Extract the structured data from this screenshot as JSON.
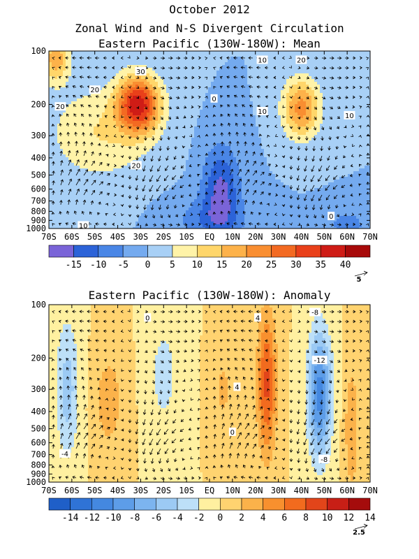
{
  "figure": {
    "title": "October 2012",
    "subtitle": "Zonal Wind and N-S Divergent Circulation"
  },
  "chart_data": [
    {
      "type": "heatmap",
      "title": "Eastern Pacific (130W-180W): Mean",
      "x_tick_labels": [
        "70S",
        "60S",
        "50S",
        "40S",
        "30S",
        "20S",
        "10S",
        "EQ",
        "10N",
        "20N",
        "30N",
        "40N",
        "50N",
        "60N",
        "70N"
      ],
      "y_tick_labels": [
        "100",
        "200",
        "300",
        "400",
        "500",
        "600",
        "700",
        "800",
        "900",
        "1000"
      ],
      "y_levels": [
        100,
        200,
        300,
        400,
        500,
        600,
        700,
        800,
        900,
        1000
      ],
      "y_scale": "log",
      "colorbar_levels": [
        -20,
        -15,
        -10,
        -5,
        0,
        5,
        10,
        15,
        20,
        25,
        30,
        35,
        40,
        45
      ],
      "colorbar_labels": [
        "-15",
        "-10",
        "-5",
        "0",
        "5",
        "10",
        "15",
        "20",
        "25",
        "30",
        "35",
        "40"
      ],
      "colorbar_label_values": [
        -15,
        -10,
        -5,
        0,
        5,
        10,
        15,
        20,
        25,
        30,
        35,
        40
      ],
      "colorbar_colors": [
        "#7a64d8",
        "#2c63d8",
        "#4a86e6",
        "#74aaef",
        "#a8d0f6",
        "#fff3a8",
        "#ffd66a",
        "#fdb24a",
        "#f98e31",
        "#f36a22",
        "#e9401a",
        "#cf1c16",
        "#a80a0a"
      ],
      "vector_scale_label": "5",
      "contour_labels": [
        {
          "text": "30",
          "lat": -30,
          "p": 130
        },
        {
          "text": "20",
          "lat": -50,
          "p": 165
        },
        {
          "text": "20",
          "lat": -65,
          "p": 205
        },
        {
          "text": "20",
          "lat": -32,
          "p": 440
        },
        {
          "text": "10",
          "lat": -55,
          "p": 960
        },
        {
          "text": "0",
          "lat": 2,
          "p": 185
        },
        {
          "text": "10",
          "lat": 23,
          "p": 112
        },
        {
          "text": "10",
          "lat": 23,
          "p": 218
        },
        {
          "text": "20",
          "lat": 40,
          "p": 112
        },
        {
          "text": "10",
          "lat": 61,
          "p": 230
        },
        {
          "text": "0",
          "lat": 53,
          "p": 850
        }
      ],
      "centers": [
        {
          "lat": -31,
          "p": 200,
          "amp": 36,
          "w": 9,
          "h": 0.36
        },
        {
          "lat": -67,
          "p": 110,
          "amp": 18,
          "w": 6,
          "h": 0.3
        },
        {
          "lat": -48,
          "p": 290,
          "amp": 10,
          "w": 22,
          "h": 0.6
        },
        {
          "lat": 40,
          "p": 210,
          "amp": 22,
          "w": 8,
          "h": 0.38
        },
        {
          "lat": 5,
          "p": 600,
          "amp": -16,
          "w": 8,
          "h": 0.55
        },
        {
          "lat": 0,
          "p": 900,
          "amp": -8,
          "w": 16,
          "h": 0.3
        },
        {
          "lat": 60,
          "p": 950,
          "amp": -7,
          "w": 10,
          "h": 0.2
        }
      ]
    },
    {
      "type": "heatmap",
      "title": "Eastern Pacific (130W-180W): Anomaly",
      "x_tick_labels": [
        "70S",
        "60S",
        "50S",
        "40S",
        "30S",
        "20S",
        "10S",
        "EQ",
        "10N",
        "20N",
        "30N",
        "40N",
        "50N",
        "60N",
        "70N"
      ],
      "y_tick_labels": [
        "100",
        "200",
        "300",
        "400",
        "500",
        "600",
        "700",
        "800",
        "900",
        "1000"
      ],
      "y_levels": [
        100,
        200,
        300,
        400,
        500,
        600,
        700,
        800,
        900,
        1000
      ],
      "y_scale": "log",
      "colorbar_levels": [
        -16,
        -14,
        -12,
        -10,
        -8,
        -6,
        -4,
        -2,
        0,
        2,
        4,
        6,
        8,
        10,
        12,
        14,
        16
      ],
      "colorbar_labels": [
        "-14",
        "-12",
        "-10",
        "-8",
        "-6",
        "-4",
        "-2",
        "0",
        "2",
        "4",
        "6",
        "8",
        "10",
        "12",
        "14"
      ],
      "colorbar_label_values": [
        -14,
        -12,
        -10,
        -8,
        -6,
        -4,
        -2,
        0,
        2,
        4,
        6,
        8,
        10,
        12,
        14
      ],
      "colorbar_colors": [
        "#1f5fc8",
        "#2f73d6",
        "#4488e0",
        "#5d9de8",
        "#7cb4ef",
        "#9ccaf4",
        "#bde0f8",
        "#fff0a0",
        "#ffd370",
        "#fbb24a",
        "#f8902e",
        "#f26b1e",
        "#e2451a",
        "#c81f16",
        "#a50c0c"
      ],
      "vector_scale_label": "2.5",
      "contour_labels": [
        {
          "text": "0",
          "lat": -27,
          "p": 118
        },
        {
          "text": "4",
          "lat": 21,
          "p": 118
        },
        {
          "text": "-8",
          "lat": 46,
          "p": 110
        },
        {
          "text": "-12",
          "lat": 48,
          "p": 205
        },
        {
          "text": "4",
          "lat": 12,
          "p": 290
        },
        {
          "text": "0",
          "lat": 10,
          "p": 520
        },
        {
          "text": "-4",
          "lat": -63,
          "p": 690
        },
        {
          "text": "-8",
          "lat": 50,
          "p": 740
        }
      ],
      "centers": [
        {
          "lat": -62,
          "p": 300,
          "amp": -5,
          "w": 5,
          "h": 0.9
        },
        {
          "lat": -44,
          "p": 350,
          "amp": 3.5,
          "w": 6,
          "h": 0.6
        },
        {
          "lat": -20,
          "p": 250,
          "amp": -3,
          "w": 6,
          "h": 0.7
        },
        {
          "lat": 6,
          "p": 300,
          "amp": 2.5,
          "w": 4,
          "h": 0.5
        },
        {
          "lat": 25,
          "p": 280,
          "amp": 8.5,
          "w": 4,
          "h": 0.9
        },
        {
          "lat": 48,
          "p": 320,
          "amp": -11,
          "w": 5,
          "h": 0.8
        },
        {
          "lat": 62,
          "p": 500,
          "amp": 4,
          "w": 3,
          "h": 0.8
        }
      ]
    }
  ]
}
